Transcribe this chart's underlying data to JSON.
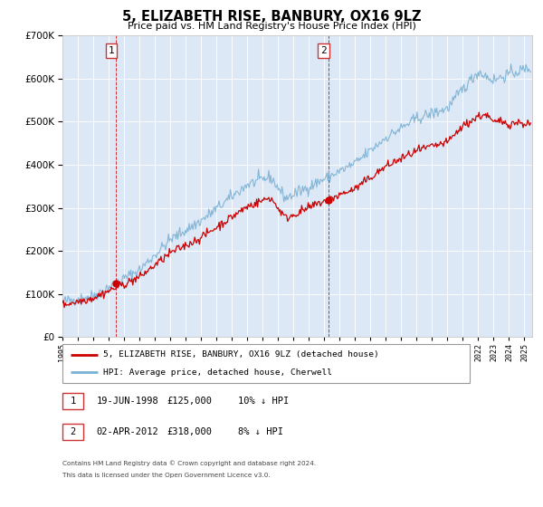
{
  "title": "5, ELIZABETH RISE, BANBURY, OX16 9LZ",
  "subtitle": "Price paid vs. HM Land Registry's House Price Index (HPI)",
  "red_label": "5, ELIZABETH RISE, BANBURY, OX16 9LZ (detached house)",
  "blue_label": "HPI: Average price, detached house, Cherwell",
  "annotation1_date": "19-JUN-1998",
  "annotation1_price": "£125,000",
  "annotation1_hpi": "10% ↓ HPI",
  "annotation1_year": 1998.47,
  "annotation1_value": 125000,
  "annotation2_date": "02-APR-2012",
  "annotation2_price": "£318,000",
  "annotation2_hpi": "8% ↓ HPI",
  "annotation2_year": 2012.25,
  "annotation2_value": 318000,
  "footer1": "Contains HM Land Registry data © Crown copyright and database right 2024.",
  "footer2": "This data is licensed under the Open Government Licence v3.0.",
  "ylim": [
    0,
    700000
  ],
  "xlim_start": 1995.0,
  "xlim_end": 2025.5,
  "background_color": "#dce8f5",
  "red_color": "#cc0000",
  "blue_color": "#7ab0d4"
}
